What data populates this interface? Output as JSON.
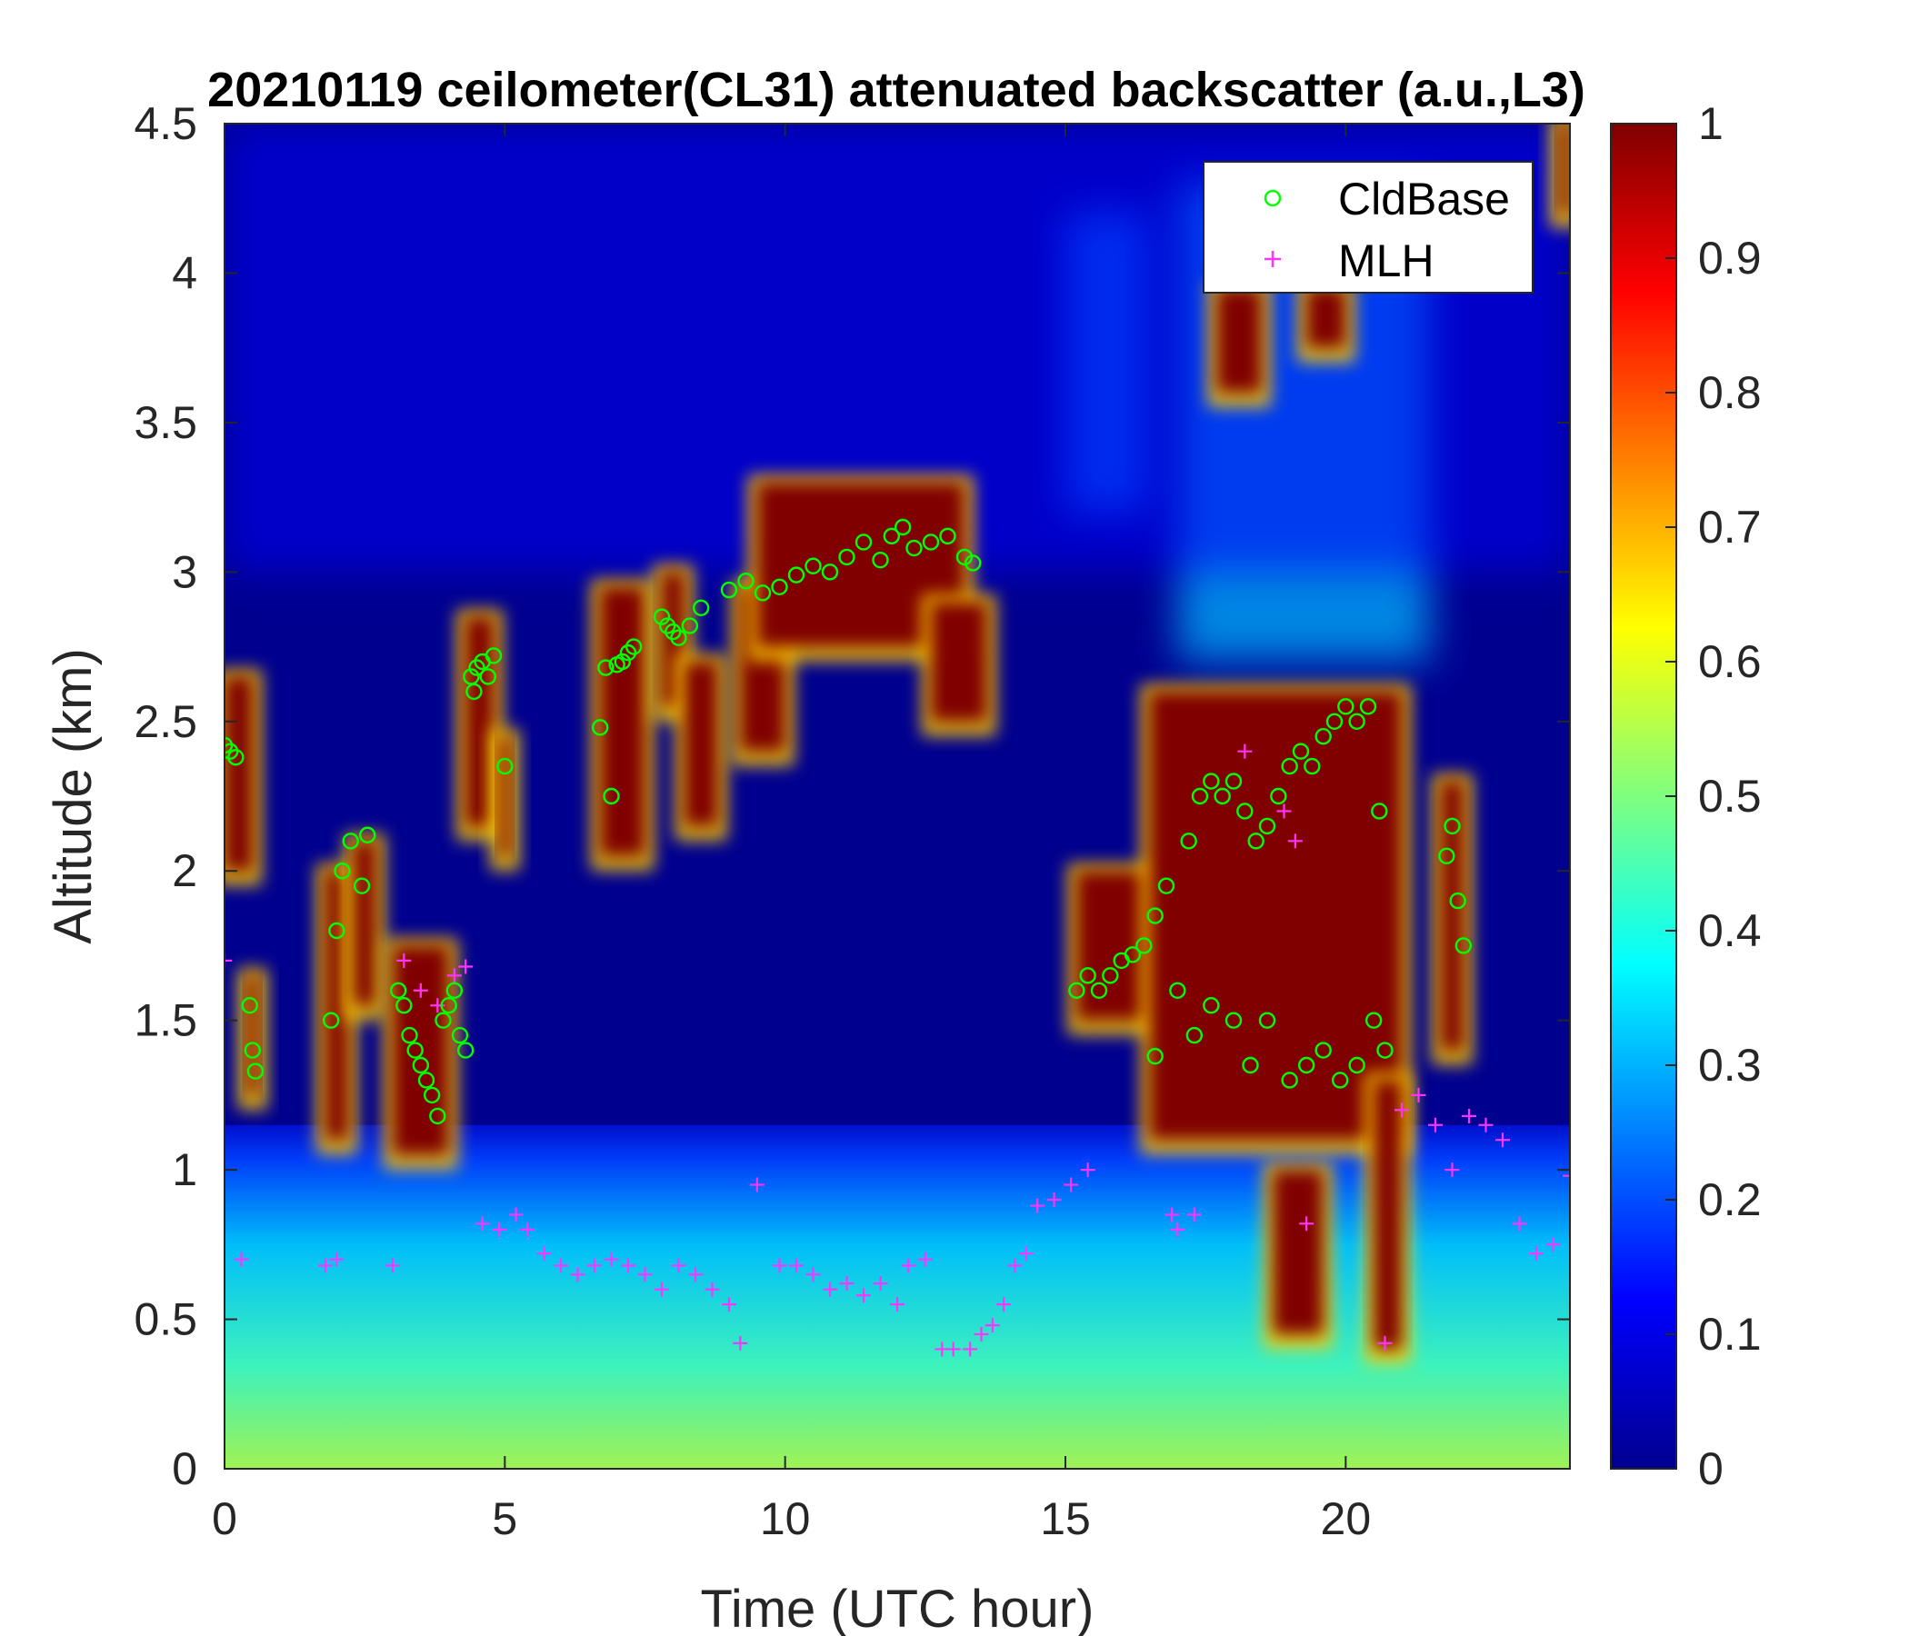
{
  "chart_data": {
    "type": "heatmap",
    "title": "20210119 ceilometer(CL31) attenuated backscatter (a.u.,L3)",
    "xlabel": "Time (UTC hour)",
    "ylabel": "Altitude (km)",
    "xlim": [
      0,
      24
    ],
    "ylim": [
      0,
      4.5
    ],
    "xticks": [
      "0",
      "5",
      "10",
      "15",
      "20"
    ],
    "xtick_values": [
      0,
      5,
      10,
      15,
      20
    ],
    "yticks": [
      "0",
      "0.5",
      "1",
      "1.5",
      "2",
      "2.5",
      "3",
      "3.5",
      "4",
      "4.5"
    ],
    "ytick_values": [
      0,
      0.5,
      1,
      1.5,
      2,
      2.5,
      3,
      3.5,
      4,
      4.5
    ],
    "colorbar": {
      "colormap": "jet",
      "range": [
        0,
        1
      ],
      "ticks": [
        "0",
        "0.1",
        "0.2",
        "0.3",
        "0.4",
        "0.5",
        "0.6",
        "0.7",
        "0.8",
        "0.9",
        "1"
      ],
      "tick_values": [
        0,
        0.1,
        0.2,
        0.3,
        0.4,
        0.5,
        0.6,
        0.7,
        0.8,
        0.9,
        1
      ]
    },
    "legend": {
      "placement": "top-right",
      "entries": [
        {
          "label": "CldBase",
          "marker": "circle",
          "color": "#00ff00"
        },
        {
          "label": "MLH",
          "marker": "plus",
          "color": "#ff33ff"
        }
      ]
    },
    "background_value": 0.04,
    "boundary_layer": [
      {
        "x": [
          0,
          24
        ],
        "top": 1.0,
        "value": 0.35
      }
    ],
    "cloud_layers": [
      {
        "x": [
          0.0,
          0.5
        ],
        "y": [
          2.0,
          2.65
        ],
        "value": 1
      },
      {
        "x": [
          0.4,
          0.6
        ],
        "y": [
          1.25,
          1.65
        ],
        "value": 1
      },
      {
        "x": [
          1.8,
          2.2
        ],
        "y": [
          1.1,
          2.0
        ],
        "value": 1
      },
      {
        "x": [
          2.3,
          2.7
        ],
        "y": [
          1.55,
          2.1
        ],
        "value": 1
      },
      {
        "x": [
          3.0,
          4.0
        ],
        "y": [
          1.05,
          1.75
        ],
        "value": 1
      },
      {
        "x": [
          4.3,
          4.8
        ],
        "y": [
          2.15,
          2.85
        ],
        "value": 1
      },
      {
        "x": [
          4.9,
          5.1
        ],
        "y": [
          2.05,
          2.45
        ],
        "value": 1
      },
      {
        "x": [
          6.7,
          7.5
        ],
        "y": [
          2.05,
          2.95
        ],
        "value": 1
      },
      {
        "x": [
          7.8,
          8.2
        ],
        "y": [
          2.55,
          3.0
        ],
        "value": 1
      },
      {
        "x": [
          8.2,
          8.8
        ],
        "y": [
          2.15,
          2.7
        ],
        "value": 1
      },
      {
        "x": [
          9.2,
          10.0
        ],
        "y": [
          2.4,
          2.95
        ],
        "value": 1
      },
      {
        "x": [
          9.5,
          13.2
        ],
        "y": [
          2.75,
          3.3
        ],
        "value": 1
      },
      {
        "x": [
          12.6,
          13.6
        ],
        "y": [
          2.5,
          2.9
        ],
        "value": 1
      },
      {
        "x": [
          15.2,
          16.7
        ],
        "y": [
          1.5,
          2.0
        ],
        "value": 1
      },
      {
        "x": [
          16.5,
          21.0
        ],
        "y": [
          1.1,
          2.6
        ],
        "value": 1
      },
      {
        "x": [
          18.7,
          19.6
        ],
        "y": [
          0.45,
          1.0
        ],
        "value": 1
      },
      {
        "x": [
          20.5,
          21.0
        ],
        "y": [
          0.4,
          1.3
        ],
        "value": 1
      },
      {
        "x": [
          21.7,
          22.1
        ],
        "y": [
          1.4,
          2.3
        ],
        "value": 1
      },
      {
        "x": [
          17.7,
          18.5
        ],
        "y": [
          3.6,
          3.95
        ],
        "value": 1
      },
      {
        "x": [
          19.3,
          20.0
        ],
        "y": [
          3.75,
          3.95
        ],
        "value": 1
      },
      {
        "x": [
          23.8,
          24.0
        ],
        "y": [
          4.2,
          4.5
        ],
        "value": 1
      }
    ],
    "aerosol_plumes": [
      {
        "x": [
          17.0,
          21.5
        ],
        "y": [
          2.7,
          4.3
        ],
        "value": 0.3
      },
      {
        "x": [
          15.0,
          16.5
        ],
        "y": [
          3.2,
          4.2
        ],
        "value": 0.25
      },
      {
        "x": [
          0,
          24
        ],
        "y": [
          3.0,
          4.5
        ],
        "value": 0.12
      }
    ],
    "series": [
      {
        "name": "CldBase",
        "x": [
          0.0,
          0.1,
          0.2,
          0.45,
          0.5,
          0.55,
          1.9,
          2.0,
          2.1,
          2.25,
          2.45,
          2.55,
          3.1,
          3.2,
          3.3,
          3.4,
          3.5,
          3.6,
          3.7,
          3.8,
          3.9,
          4.0,
          4.1,
          4.2,
          4.3,
          4.4,
          4.45,
          4.5,
          4.6,
          4.7,
          4.8,
          5.0,
          6.7,
          6.8,
          6.9,
          7.0,
          7.1,
          7.2,
          7.3,
          7.8,
          7.9,
          8.0,
          8.1,
          8.3,
          8.5,
          9.0,
          9.3,
          9.6,
          9.9,
          10.2,
          10.5,
          10.8,
          11.1,
          11.4,
          11.7,
          11.9,
          12.1,
          12.3,
          12.6,
          12.9,
          13.2,
          13.35,
          15.2,
          15.4,
          15.6,
          15.8,
          16.0,
          16.2,
          16.4,
          16.6,
          16.6,
          16.8,
          17.0,
          17.2,
          17.4,
          17.6,
          17.8,
          18.0,
          18.2,
          18.4,
          18.6,
          18.8,
          19.0,
          19.2,
          19.4,
          19.6,
          19.8,
          20.0,
          20.2,
          20.4,
          20.6,
          17.3,
          17.6,
          18.0,
          18.3,
          18.6,
          19.0,
          19.3,
          19.6,
          19.9,
          20.2,
          20.5,
          20.7,
          21.8,
          21.9,
          22.0,
          22.1
        ],
        "y": [
          2.42,
          2.4,
          2.38,
          1.55,
          1.4,
          1.33,
          1.5,
          1.8,
          2.0,
          2.1,
          1.95,
          2.12,
          1.6,
          1.55,
          1.45,
          1.4,
          1.35,
          1.3,
          1.25,
          1.18,
          1.5,
          1.55,
          1.6,
          1.45,
          1.4,
          2.65,
          2.6,
          2.68,
          2.7,
          2.65,
          2.72,
          2.35,
          2.48,
          2.68,
          2.25,
          2.69,
          2.7,
          2.73,
          2.75,
          2.85,
          2.82,
          2.8,
          2.78,
          2.82,
          2.88,
          2.94,
          2.97,
          2.93,
          2.95,
          2.99,
          3.02,
          3.0,
          3.05,
          3.1,
          3.04,
          3.12,
          3.15,
          3.08,
          3.1,
          3.12,
          3.05,
          3.03,
          1.6,
          1.65,
          1.6,
          1.65,
          1.7,
          1.72,
          1.75,
          1.38,
          1.85,
          1.95,
          1.6,
          2.1,
          2.25,
          2.3,
          2.25,
          2.3,
          2.2,
          2.1,
          2.15,
          2.25,
          2.35,
          2.4,
          2.35,
          2.45,
          2.5,
          2.55,
          2.5,
          2.55,
          2.2,
          1.45,
          1.55,
          1.5,
          1.35,
          1.5,
          1.3,
          1.35,
          1.4,
          1.3,
          1.35,
          1.5,
          1.4,
          2.05,
          2.15,
          1.9,
          1.75
        ]
      },
      {
        "name": "MLH",
        "x": [
          0.0,
          0.3,
          1.8,
          2.0,
          3.0,
          3.2,
          3.5,
          3.8,
          4.1,
          4.3,
          4.6,
          4.9,
          5.2,
          5.4,
          5.7,
          6.0,
          6.3,
          6.6,
          6.9,
          7.2,
          7.5,
          7.8,
          8.1,
          8.4,
          8.7,
          9.0,
          9.2,
          9.5,
          9.9,
          10.2,
          10.5,
          10.8,
          11.1,
          11.4,
          11.7,
          12.0,
          12.2,
          12.5,
          12.8,
          13.0,
          13.3,
          13.5,
          13.7,
          13.9,
          14.1,
          14.3,
          14.5,
          14.8,
          15.1,
          15.4,
          16.9,
          17.0,
          17.3,
          18.2,
          18.9,
          19.1,
          19.3,
          20.7,
          21.0,
          21.3,
          21.6,
          21.9,
          22.2,
          22.5,
          22.8,
          23.1,
          23.4,
          23.7,
          24.0
        ],
        "y": [
          1.7,
          0.7,
          0.68,
          0.7,
          0.68,
          1.7,
          1.6,
          1.55,
          1.65,
          1.68,
          0.82,
          0.8,
          0.85,
          0.8,
          0.72,
          0.68,
          0.65,
          0.68,
          0.7,
          0.68,
          0.65,
          0.6,
          0.68,
          0.65,
          0.6,
          0.55,
          0.42,
          0.95,
          0.68,
          0.68,
          0.65,
          0.6,
          0.62,
          0.58,
          0.62,
          0.55,
          0.68,
          0.7,
          0.4,
          0.4,
          0.4,
          0.45,
          0.48,
          0.55,
          0.68,
          0.72,
          0.88,
          0.9,
          0.95,
          1.0,
          0.85,
          0.8,
          0.85,
          2.4,
          2.2,
          2.1,
          0.82,
          0.42,
          1.2,
          1.25,
          1.15,
          1.0,
          1.18,
          1.15,
          1.1,
          0.82,
          0.72,
          0.75,
          0.98
        ]
      }
    ]
  }
}
